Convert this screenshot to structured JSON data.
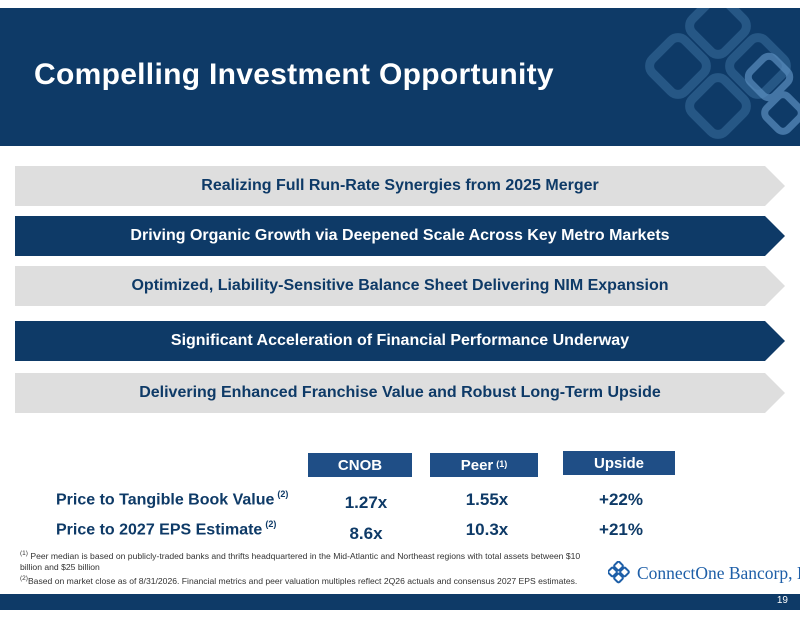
{
  "header": {
    "title": "Compelling Investment Opportunity"
  },
  "pillars": [
    {
      "label": "Realizing Full Run-Rate Synergies from 2025 Merger"
    },
    {
      "label": "Driving Organic Growth via Deepened Scale Across Key Metro Markets"
    },
    {
      "label": "Optimized, Liability-Sensitive Balance Sheet Delivering NIM Expansion"
    },
    {
      "label": "Significant Acceleration of Financial Performance Underway"
    },
    {
      "label": "Delivering Enhanced Franchise Value and Robust Long-Term Upside"
    }
  ],
  "valuation": {
    "columns": [
      {
        "label": "CNOB",
        "note": ""
      },
      {
        "label": "Peer",
        "note": "(1)"
      },
      {
        "label": "Upside",
        "note": ""
      }
    ],
    "rows": [
      {
        "label": "Price to Tangible Book Value",
        "note": "(2)",
        "values": [
          "1.27x",
          "1.55x",
          "+22%"
        ]
      },
      {
        "label": "Price to 2027 EPS Estimate",
        "note": "(2)",
        "values": [
          "8.6x",
          "10.3x",
          "+21%"
        ]
      }
    ]
  },
  "footnotes": [
    {
      "marker": "(1)",
      "text": "Peer median is based on publicly-traded banks and thrifts headquartered in the Mid-Atlantic and Northeast regions with total assets between $10 billion and $25 billion"
    },
    {
      "marker": "(2)",
      "text": "Based on market close as of 8/31/2026. Financial metrics and peer valuation multiples reflect 2Q26 actuals and consensus 2027 EPS estimates."
    }
  ],
  "logo": {
    "text": "ConnectOne Bancorp, Inc."
  },
  "footer": {
    "page_number": "19"
  },
  "colors": {
    "navy": "#0e3a67",
    "header_blue": "#1f4e86",
    "light_gray": "#dedede",
    "logo_blue": "#1e5fa8"
  },
  "icons": {
    "header_decoration": "interlocking-diamonds-icon",
    "logo_mark": "connectone-diamond-logo-icon"
  }
}
